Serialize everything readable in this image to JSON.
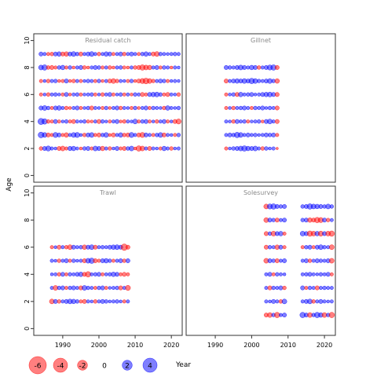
{
  "chart_data": {
    "type": "scatter",
    "subtype": "bubble-residuals",
    "xlabel": "Year",
    "ylabel": "Age",
    "xlim": [
      1982,
      2023
    ],
    "ylim": [
      -0.5,
      10.5
    ],
    "x_ticks": [
      1990,
      2000,
      2010,
      2020
    ],
    "y_ticks": [
      0,
      2,
      4,
      6,
      8,
      10
    ],
    "colors": {
      "positive": "#0000ff",
      "negative": "#ff0000",
      "fill_opacity": 0.5
    },
    "size_legend": {
      "values": [
        -6,
        -4,
        -2,
        0,
        2,
        4
      ],
      "labels": [
        "-6",
        "-4",
        "-2",
        "0",
        "2",
        "4"
      ]
    },
    "panels": [
      {
        "title": "Residual catch",
        "years": [
          1984,
          2022
        ],
        "ages": [
          2,
          3,
          4,
          5,
          6,
          7,
          8,
          9
        ],
        "residuals": [
          [
            -1.2,
            1.5,
            2.2,
            1.0,
            0.8,
            -1.5,
            -2.0,
            -1.0,
            1.6,
            1.8,
            0.9,
            -0.8,
            1.2,
            1.5,
            -1.0,
            2.0,
            1.5,
            -1.8,
            1.0,
            -1.2,
            0.8,
            1.5,
            -1.0,
            -1.5,
            1.2,
            2.0,
            -0.8,
            -2.5,
            -2.0,
            1.0,
            -1.5,
            1.0,
            0.8,
            -1.0,
            1.8,
            1.0,
            -1.2,
            0.8,
            1.0
          ],
          [
            2.8,
            2.0,
            -1.5,
            -1.0,
            2.2,
            1.5,
            -1.0,
            -1.8,
            1.0,
            2.0,
            2.2,
            0.8,
            -1.2,
            1.5,
            2.0,
            -1.0,
            -1.5,
            1.2,
            2.0,
            -0.8,
            -1.5,
            1.0,
            1.8,
            -1.2,
            -1.5,
            2.2,
            1.0,
            -1.5,
            -2.2,
            1.5,
            1.0,
            -1.0,
            1.2,
            2.0,
            -1.5,
            1.0,
            0.8,
            -1.0,
            1.2
          ],
          [
            3.2,
            2.5,
            -1.2,
            -1.0,
            1.5,
            -1.0,
            0.8,
            1.2,
            -1.0,
            -1.5,
            1.0,
            0.8,
            1.2,
            -1.0,
            -0.8,
            1.0,
            -1.5,
            1.2,
            0.8,
            -1.0,
            1.0,
            1.5,
            -0.8,
            -1.2,
            1.0,
            0.8,
            2.0,
            -1.0,
            1.2,
            1.5,
            -1.0,
            0.8,
            -1.2,
            1.0,
            1.5,
            -1.0,
            0.8,
            -1.5,
            -2.2
          ],
          [
            1.5,
            2.0,
            1.2,
            -1.0,
            1.5,
            1.8,
            1.0,
            -1.2,
            -0.8,
            1.0,
            1.5,
            -1.0,
            0.8,
            1.2,
            -1.5,
            1.0,
            0.8,
            -1.0,
            1.2,
            -0.8,
            1.0,
            1.5,
            -1.2,
            1.0,
            0.8,
            -1.0,
            1.2,
            -0.8,
            1.0,
            1.5,
            -1.0,
            1.2,
            1.0,
            0.8,
            -1.2,
            1.8,
            1.0,
            0.8,
            1.2
          ],
          [
            -1.0,
            0.8,
            -1.2,
            1.0,
            1.2,
            0.8,
            -1.0,
            1.5,
            -0.8,
            1.0,
            1.2,
            -1.0,
            0.8,
            1.0,
            1.2,
            -1.0,
            0.8,
            -1.2,
            1.0,
            1.5,
            -1.0,
            0.8,
            1.2,
            -1.0,
            1.0,
            -0.8,
            1.2,
            1.0,
            -1.5,
            -1.0,
            1.5,
            1.8,
            2.0,
            1.2,
            -1.0,
            -1.5,
            1.0,
            0.8,
            -1.2
          ],
          [
            -1.0,
            0.8,
            -1.2,
            1.0,
            1.2,
            -0.8,
            -1.0,
            1.5,
            -0.8,
            -1.2,
            1.0,
            -1.0,
            0.8,
            1.2,
            1.0,
            -1.0,
            1.2,
            -0.8,
            1.0,
            -1.5,
            -2.0,
            -1.2,
            1.0,
            0.8,
            -1.0,
            1.2,
            -0.8,
            -1.5,
            -2.2,
            -2.8,
            -2.0,
            -1.2,
            1.0,
            1.5,
            1.2,
            -1.0,
            0.8,
            1.0,
            0.8
          ],
          [
            2.0,
            2.5,
            -1.2,
            -1.5,
            -1.0,
            1.2,
            1.8,
            -1.0,
            1.2,
            -0.8,
            1.0,
            1.5,
            -1.2,
            -0.8,
            1.0,
            1.5,
            1.2,
            -1.0,
            1.0,
            -1.2,
            -0.8,
            1.0,
            1.2,
            -1.0,
            -0.8,
            1.0,
            -1.2,
            -1.5,
            -2.5,
            -2.0,
            -1.8,
            1.0,
            1.5,
            -1.0,
            1.2,
            1.0,
            -0.8,
            1.0,
            0.8
          ],
          [
            1.5,
            1.0,
            -1.0,
            -1.2,
            1.5,
            1.8,
            -1.5,
            -1.8,
            1.5,
            2.0,
            1.2,
            -1.5,
            1.0,
            1.5,
            2.0,
            1.0,
            -1.2,
            1.0,
            1.8,
            1.5,
            -1.0,
            1.0,
            1.5,
            -1.2,
            1.0,
            1.5,
            1.0,
            -1.0,
            1.2,
            1.8,
            1.0,
            -1.5,
            -2.0,
            1.2,
            1.0,
            0.8,
            1.0,
            1.2,
            1.0
          ]
        ]
      },
      {
        "title": "Gillnet",
        "years": [
          1993,
          2007
        ],
        "ages": [
          2,
          3,
          4,
          5,
          6,
          7,
          8
        ],
        "residuals": [
          [
            -1.0,
            0.8,
            1.2,
            1.5,
            2.0,
            2.5,
            1.8,
            1.5,
            2.0,
            1.0,
            -1.2,
            1.2,
            0.8,
            1.0,
            -0.5
          ],
          [
            1.0,
            1.5,
            1.2,
            2.5,
            2.0,
            1.0,
            1.5,
            1.0,
            1.2,
            0.8,
            1.0,
            1.5,
            1.2,
            1.5,
            -1.0
          ],
          [
            1.0,
            0.8,
            -1.2,
            1.5,
            1.0,
            1.2,
            -1.0,
            0.8,
            1.0,
            1.2,
            -0.8,
            1.5,
            2.0,
            1.0,
            -1.5
          ],
          [
            -1.0,
            0.8,
            -1.2,
            1.0,
            1.2,
            1.5,
            1.0,
            -1.0,
            1.2,
            1.0,
            1.5,
            0.8,
            1.2,
            1.0,
            -1.5
          ],
          [
            -1.0,
            0.8,
            1.2,
            -1.5,
            1.8,
            1.0,
            1.2,
            1.5,
            0.8,
            1.0,
            1.5,
            1.8,
            2.0,
            1.5,
            -1.5
          ],
          [
            -1.5,
            1.0,
            1.5,
            1.8,
            1.5,
            2.0,
            1.5,
            2.5,
            2.0,
            1.2,
            1.0,
            1.5,
            2.0,
            1.2,
            -1.8
          ],
          [
            1.5,
            1.2,
            1.0,
            1.5,
            2.0,
            1.5,
            1.0,
            1.8,
            1.5,
            -1.2,
            1.0,
            1.5,
            2.2,
            2.5,
            -1.5
          ]
        ]
      },
      {
        "title": "Trawl",
        "years": [
          1987,
          2008
        ],
        "ages": [
          2,
          3,
          4,
          5,
          6
        ],
        "residuals": [
          [
            -2.0,
            1.5,
            -1.2,
            1.0,
            1.5,
            2.0,
            1.8,
            1.2,
            -1.0,
            -1.5,
            1.0,
            0.8,
            -1.2,
            1.0,
            1.5,
            1.2,
            0.8,
            1.0,
            1.2,
            0.8,
            -1.0,
            1.0
          ],
          [
            1.0,
            -2.0,
            1.2,
            1.5,
            -1.0,
            1.2,
            1.5,
            1.0,
            -1.5,
            2.0,
            1.2,
            1.0,
            -1.0,
            1.2,
            1.5,
            -1.0,
            0.8,
            1.0,
            1.2,
            -1.5,
            1.0,
            -2.2
          ],
          [
            0.8,
            1.0,
            -1.2,
            1.5,
            -1.0,
            1.2,
            1.0,
            1.5,
            1.8,
            -1.5,
            -2.5,
            1.0,
            1.2,
            1.5,
            -1.0,
            1.0,
            1.2,
            1.8,
            1.5,
            -1.0,
            -1.5,
            -1.0
          ],
          [
            1.0,
            0.8,
            -1.2,
            1.0,
            1.5,
            -1.0,
            1.2,
            0.8,
            1.0,
            -1.5,
            2.0,
            2.5,
            -1.5,
            -1.0,
            1.5,
            1.8,
            1.2,
            -1.0,
            1.0,
            1.5,
            -1.2,
            1.5
          ],
          [
            -1.0,
            0.8,
            -1.5,
            1.0,
            -1.2,
            -2.0,
            1.5,
            1.0,
            1.2,
            -1.8,
            1.5,
            2.0,
            -1.5,
            1.0,
            1.2,
            1.0,
            1.5,
            1.8,
            2.0,
            1.5,
            -3.5,
            -1.5
          ]
        ]
      },
      {
        "title": "Solesurvey",
        "years": [
          2004,
          2022
        ],
        "skip_years": [
          2010,
          2011,
          2012
        ],
        "ages": [
          1,
          2,
          3,
          4,
          5,
          6,
          7,
          8,
          9
        ],
        "residuals": [
          [
            -1.5,
            -2.0,
            1.2,
            -2.5,
            1.0,
            1.5,
            -0.5,
            0,
            0,
            0,
            2.5,
            1.5,
            -2.0,
            1.2,
            2.5,
            1.8,
            -2.0,
            1.2,
            -2.5
          ],
          [
            1.0,
            0.8,
            1.5,
            1.0,
            -1.2,
            2.0,
            1.5,
            0,
            0,
            0,
            1.0,
            1.5,
            2.0,
            -1.2,
            1.0,
            1.5,
            1.0,
            0.8,
            1.0
          ],
          [
            1.0,
            -1.5,
            1.2,
            1.0,
            1.5,
            -1.2,
            1.0,
            0,
            0,
            0,
            1.5,
            -1.0,
            1.2,
            1.0,
            -1.5,
            1.0,
            1.2,
            1.0,
            1.0
          ],
          [
            1.0,
            1.5,
            -1.0,
            1.2,
            1.0,
            0.8,
            1.0,
            0,
            0,
            0,
            1.0,
            1.2,
            1.5,
            1.0,
            0.8,
            1.2,
            1.0,
            1.5,
            -1.0
          ],
          [
            -2.0,
            1.5,
            1.2,
            -1.5,
            1.0,
            1.5,
            1.0,
            0,
            0,
            0,
            1.0,
            1.5,
            -1.2,
            1.0,
            1.5,
            1.2,
            1.0,
            1.5,
            -2.0
          ],
          [
            -1.5,
            1.2,
            1.0,
            -1.8,
            1.5,
            -1.0,
            1.0,
            0,
            0,
            0,
            -1.0,
            1.2,
            1.5,
            -1.0,
            1.5,
            2.0,
            1.2,
            1.0,
            -2.0
          ],
          [
            -1.5,
            1.2,
            -2.0,
            1.5,
            1.8,
            -1.0,
            1.2,
            0,
            0,
            0,
            2.0,
            1.5,
            -2.5,
            -2.0,
            1.8,
            -2.2,
            1.5,
            -2.0,
            -2.5
          ],
          [
            -2.0,
            1.5,
            1.2,
            -1.5,
            1.0,
            1.5,
            1.2,
            0,
            0,
            0,
            1.2,
            1.5,
            -1.8,
            -1.5,
            -2.5,
            -2.2,
            1.5,
            -1.2,
            1.0
          ],
          [
            -2.0,
            2.2,
            2.5,
            1.5,
            1.2,
            1.5,
            -1.0,
            0,
            0,
            0,
            1.2,
            1.5,
            2.5,
            2.0,
            1.8,
            1.5,
            1.2,
            2.0,
            1.2
          ]
        ]
      }
    ]
  }
}
